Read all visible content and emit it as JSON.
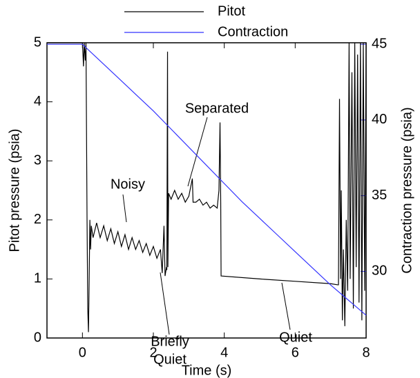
{
  "chart_data": {
    "type": "line",
    "xlabel": "Time (s)",
    "ylabel": "Pitot pressure (psia)",
    "y2label": "Contraction pressure (psia)",
    "xlim": [
      -1,
      8
    ],
    "xticks": [
      0,
      2,
      4,
      6,
      8
    ],
    "ylim": [
      0,
      5
    ],
    "yticks": [
      0,
      1,
      2,
      3,
      4,
      5
    ],
    "y2lim": [
      25.6,
      45.1
    ],
    "y2ticks": [
      30,
      35,
      40,
      45
    ],
    "y2color": "#3333ff",
    "legend": "top",
    "series": [
      {
        "name": "Pitot",
        "color": "#000000",
        "x": [
          -1,
          0,
          0.03,
          0.05,
          0.08,
          0.1,
          0.13,
          0.15,
          0.17,
          0.19,
          0.21,
          0.23,
          0.25,
          0.3,
          0.4,
          0.5,
          0.6,
          0.7,
          0.8,
          0.9,
          1.0,
          1.1,
          1.2,
          1.3,
          1.4,
          1.5,
          1.6,
          1.7,
          1.8,
          1.9,
          2.0,
          2.1,
          2.2,
          2.25,
          2.3,
          2.33,
          2.37,
          2.38,
          2.4,
          2.41,
          2.43,
          2.5,
          2.6,
          2.7,
          2.8,
          2.9,
          3.0,
          3.1,
          3.12,
          3.2,
          3.3,
          3.4,
          3.5,
          3.6,
          3.7,
          3.8,
          3.85,
          3.88,
          3.9,
          3.91,
          5,
          6,
          7,
          7.2,
          7.22,
          7.25,
          7.28,
          7.3,
          7.33,
          7.36,
          7.4,
          7.44,
          7.48,
          7.52,
          7.55,
          7.6,
          7.64,
          7.68,
          7.72,
          7.76,
          7.8,
          7.84,
          7.88,
          7.92,
          7.96,
          8
        ],
        "values": [
          5,
          5,
          4.6,
          5,
          4.7,
          5,
          2.0,
          0.5,
          0.1,
          1.0,
          2.0,
          1.5,
          1.9,
          1.7,
          1.95,
          1.7,
          1.9,
          1.65,
          1.85,
          1.6,
          1.8,
          1.55,
          1.75,
          1.5,
          1.7,
          1.5,
          1.65,
          1.45,
          1.6,
          1.4,
          1.55,
          1.35,
          1.5,
          1.1,
          1.9,
          1.05,
          1.2,
          1.15,
          4.85,
          1.2,
          2.45,
          2.35,
          2.5,
          2.35,
          2.45,
          2.3,
          2.4,
          2.7,
          2.3,
          2.3,
          2.35,
          2.25,
          2.3,
          2.2,
          2.25,
          2.2,
          2.5,
          3.65,
          2.3,
          1.05,
          1.0,
          0.96,
          0.92,
          0.9,
          0.9,
          4.05,
          1.0,
          2.5,
          0.3,
          1.5,
          0.2,
          2.0,
          0.8,
          5,
          1.0,
          4.5,
          0.5,
          5,
          1.2,
          4.8,
          0.6,
          5,
          0.3,
          5,
          0.8,
          5
        ]
      },
      {
        "name": "Contraction",
        "color": "#3333ff",
        "axis": "y2",
        "x": [
          -1,
          0,
          0.5,
          1,
          1.5,
          2,
          2.5,
          3,
          3.5,
          4,
          4.5,
          5,
          5.5,
          6,
          6.5,
          7,
          7.5,
          8
        ],
        "values": [
          45,
          45,
          43.9,
          42.8,
          41.7,
          40.6,
          39.4,
          38.2,
          37.0,
          35.8,
          34.6,
          33.5,
          32.4,
          31.3,
          30.2,
          29.1,
          28.1,
          27.1
        ]
      }
    ],
    "annotations": [
      [
        "Noisy"
      ],
      [
        "Separated"
      ],
      [
        "Briefly",
        "Quiet"
      ],
      [
        "Quiet"
      ]
    ]
  }
}
